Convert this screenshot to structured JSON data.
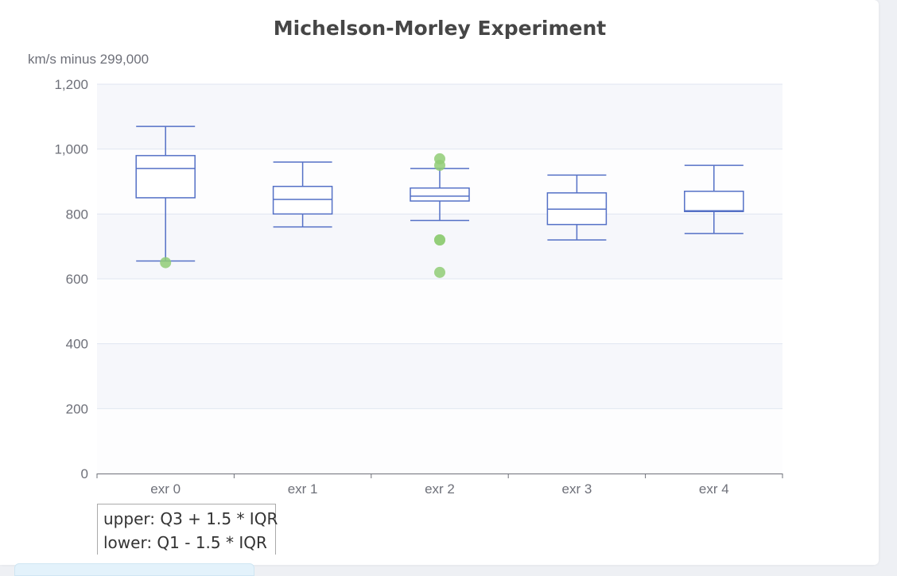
{
  "chart_data": {
    "type": "boxplot",
    "title": "Michelson-Morley Experiment",
    "ylabel": "km/s minus 299,000",
    "xlabel": "",
    "ylim": [
      0,
      1200
    ],
    "yticks": [
      0,
      200,
      400,
      600,
      800,
      1000,
      1200
    ],
    "ytick_labels": [
      "0",
      "200",
      "400",
      "600",
      "800",
      "1,000",
      "1,200"
    ],
    "categories": [
      "exr 0",
      "exr 1",
      "exr 2",
      "exr 3",
      "exr 4"
    ],
    "boxes": [
      {
        "name": "exr 0",
        "min": 655,
        "q1": 850,
        "median": 940,
        "q3": 980,
        "max": 1070
      },
      {
        "name": "exr 1",
        "min": 760,
        "q1": 800,
        "median": 845,
        "q3": 885,
        "max": 960
      },
      {
        "name": "exr 2",
        "min": 780,
        "q1": 840,
        "median": 855,
        "q3": 880,
        "max": 940
      },
      {
        "name": "exr 3",
        "min": 720,
        "q1": 767.5,
        "median": 815,
        "q3": 865,
        "max": 920
      },
      {
        "name": "exr 4",
        "min": 740,
        "q1": 807.5,
        "median": 810,
        "q3": 870,
        "max": 950
      }
    ],
    "outliers": [
      {
        "category": "exr 0",
        "value": 650
      },
      {
        "category": "exr 2",
        "value": 620
      },
      {
        "category": "exr 2",
        "value": 720
      },
      {
        "category": "exr 2",
        "value": 720
      },
      {
        "category": "exr 2",
        "value": 950
      },
      {
        "category": "exr 2",
        "value": 970
      }
    ],
    "colors": {
      "box_stroke": "#5470c6",
      "outlier": "#91cc75",
      "band_dark": "#f6f7fb",
      "band_light": "#fdfdfe",
      "grid": "#e0e6f1",
      "axis": "#6e7079"
    }
  },
  "note": {
    "line1": "upper: Q3 + 1.5 * IQR",
    "line2": "lower: Q1 - 1.5 * IQR"
  }
}
